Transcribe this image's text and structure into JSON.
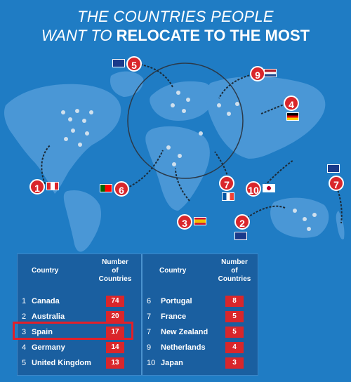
{
  "title": {
    "line1": "THE COUNTRIES PEOPLE",
    "line2_prefix": "WANT TO",
    "line2_bold": "RELOCATE TO THE MOST"
  },
  "table": {
    "header_country": "Country",
    "header_number_l1": "Number",
    "header_number_l2": "of",
    "header_number_l3": "Countries",
    "left_rows": [
      {
        "rank": "1",
        "country": "Canada",
        "value": "74"
      },
      {
        "rank": "2",
        "country": "Australia",
        "value": "20"
      },
      {
        "rank": "3",
        "country": "Spain",
        "value": "17"
      },
      {
        "rank": "4",
        "country": "Germany",
        "value": "14"
      },
      {
        "rank": "5",
        "country": "United Kingdom",
        "value": "13"
      }
    ],
    "right_rows": [
      {
        "rank": "6",
        "country": "Portugal",
        "value": "8"
      },
      {
        "rank": "7",
        "country": "France",
        "value": "5"
      },
      {
        "rank": "7",
        "country": "New Zealand",
        "value": "5"
      },
      {
        "rank": "9",
        "country": "Netherlands",
        "value": "4"
      },
      {
        "rank": "10",
        "country": "Japan",
        "value": "3"
      }
    ],
    "highlighted_country": "Spain"
  },
  "markers": [
    {
      "label": "1",
      "country": "Canada"
    },
    {
      "label": "2",
      "country": "Australia"
    },
    {
      "label": "3",
      "country": "Spain"
    },
    {
      "label": "4",
      "country": "Germany"
    },
    {
      "label": "5",
      "country": "United Kingdom"
    },
    {
      "label": "6",
      "country": "Portugal"
    },
    {
      "label": "7",
      "country": "France"
    },
    {
      "label": "7",
      "country": "New Zealand"
    },
    {
      "label": "9",
      "country": "Netherlands"
    },
    {
      "label": "10",
      "country": "Japan"
    }
  ],
  "colors": {
    "background": "#1f7cc4",
    "land": "#4a97d6",
    "accent_red": "#d9262b",
    "table_bg": "#1a5fa0"
  }
}
